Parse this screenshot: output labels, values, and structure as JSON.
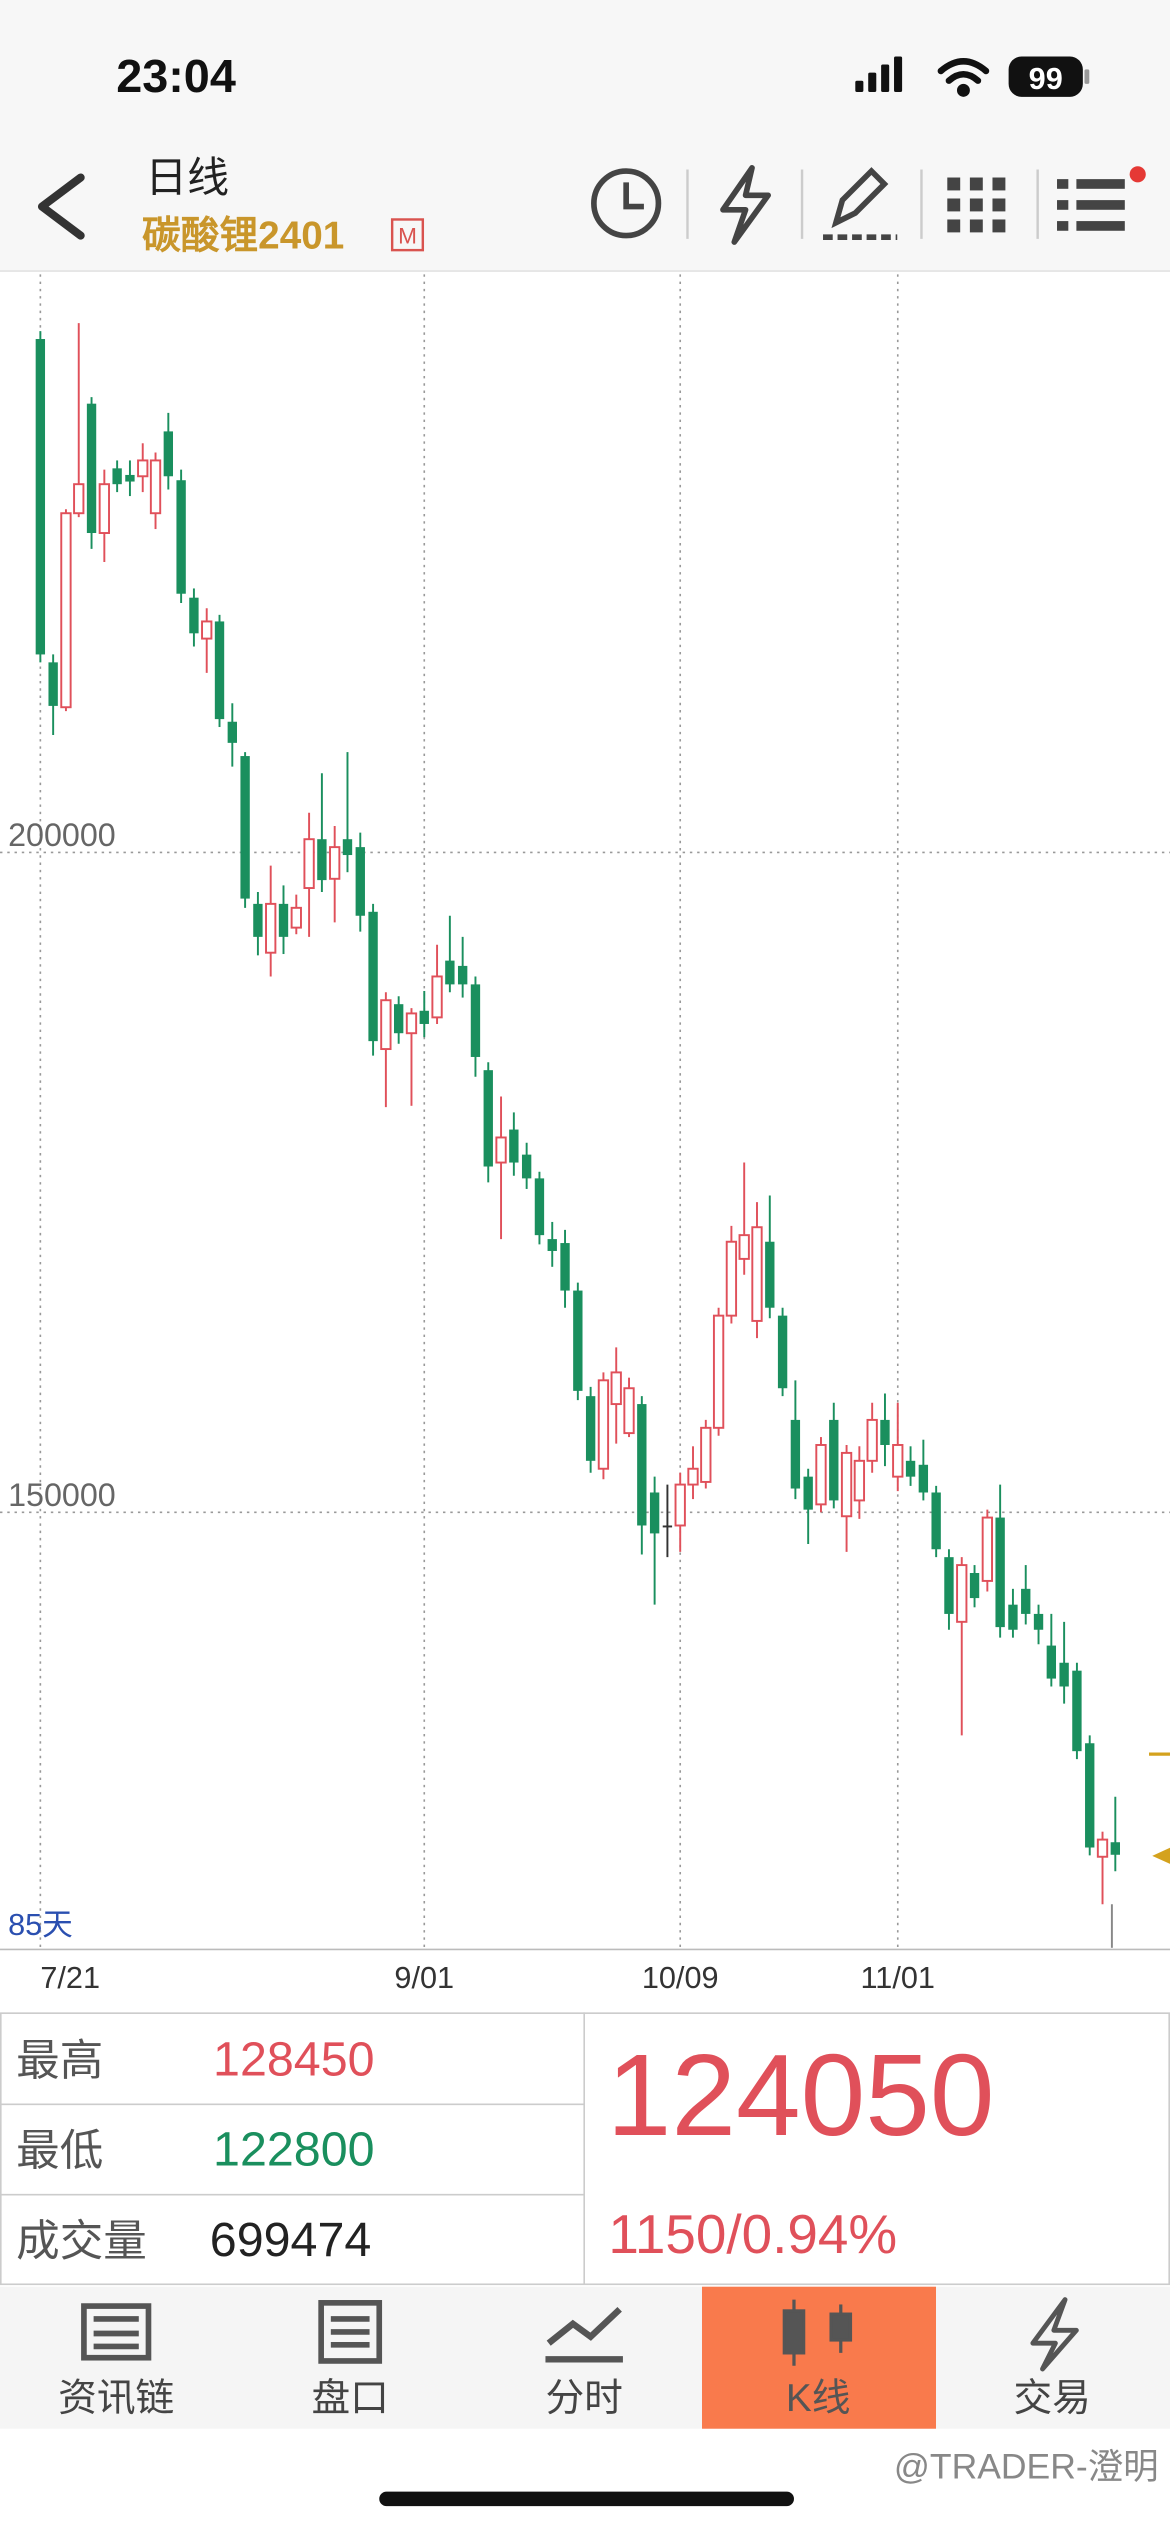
{
  "status_bar": {
    "time": "23:04",
    "battery": "99"
  },
  "header": {
    "title": "日线",
    "symbol": "碳酸锂2401",
    "badge": "M"
  },
  "chart_data": {
    "type": "candlestick",
    "categories": [
      "7/21",
      null,
      null,
      null,
      null,
      null,
      null,
      null,
      null,
      null,
      null,
      null,
      null,
      null,
      null,
      null,
      null,
      null,
      null,
      null,
      null,
      null,
      null,
      null,
      null,
      null,
      null,
      null,
      null,
      null,
      "9/01",
      null,
      null,
      null,
      null,
      null,
      null,
      null,
      null,
      null,
      null,
      null,
      null,
      null,
      null,
      null,
      null,
      null,
      null,
      null,
      "10/09",
      null,
      null,
      null,
      null,
      null,
      null,
      null,
      null,
      null,
      null,
      null,
      null,
      null,
      null,
      null,
      null,
      "11/01",
      null,
      null,
      null,
      null,
      null,
      null,
      null,
      null,
      null,
      null,
      null,
      null,
      null,
      null,
      null,
      null,
      null
    ],
    "open": [
      238900,
      214400,
      211000,
      225700,
      234000,
      224200,
      229100,
      228600,
      228500,
      225700,
      231900,
      228200,
      219300,
      216200,
      217500,
      209900,
      207300,
      196100,
      192400,
      196100,
      194300,
      197300,
      201000,
      198000,
      201000,
      200400,
      195500,
      185100,
      188500,
      186300,
      188000,
      187500,
      191800,
      191400,
      190000,
      183500,
      176500,
      179000,
      177100,
      175300,
      170700,
      170400,
      166800,
      158800,
      153300,
      158200,
      156000,
      158200,
      151500,
      149000,
      149000,
      152100,
      152300,
      156400,
      164900,
      169200,
      164500,
      170500,
      164900,
      157000,
      152700,
      150600,
      157000,
      149700,
      150900,
      153900,
      157000,
      152700,
      153900,
      153600,
      151500,
      146600,
      141700,
      145400,
      144800,
      149600,
      143000,
      144200,
      142300,
      139900,
      138600,
      138000,
      132500,
      123900,
      125000
    ],
    "high": [
      239500,
      215000,
      226000,
      240100,
      234500,
      229000,
      229700,
      229700,
      231000,
      230300,
      233300,
      229000,
      220000,
      218500,
      218000,
      211300,
      207600,
      197000,
      199000,
      197500,
      196800,
      203000,
      206000,
      202000,
      207600,
      201500,
      196100,
      189400,
      189100,
      188200,
      189500,
      193000,
      195200,
      193600,
      190600,
      184100,
      181500,
      180300,
      178000,
      175800,
      172000,
      171400,
      167400,
      159500,
      160600,
      162500,
      160200,
      158800,
      152700,
      152100,
      153000,
      155000,
      157000,
      165500,
      171700,
      176500,
      173500,
      174000,
      165500,
      160000,
      153300,
      155700,
      158300,
      155100,
      155000,
      158300,
      159000,
      158300,
      155000,
      155500,
      152000,
      147200,
      146600,
      146000,
      150200,
      152100,
      144200,
      146000,
      143000,
      142300,
      141700,
      138600,
      133100,
      125800,
      128450
    ],
    "low": [
      214400,
      208900,
      210700,
      225400,
      223000,
      222000,
      227300,
      227000,
      227300,
      224500,
      227500,
      218900,
      215600,
      213600,
      209500,
      206500,
      195800,
      192200,
      190600,
      192300,
      193800,
      193600,
      197000,
      194700,
      198500,
      194000,
      184600,
      180700,
      185500,
      180800,
      186000,
      187000,
      189400,
      189000,
      183000,
      175000,
      170700,
      175500,
      174500,
      170300,
      168600,
      165500,
      158500,
      153000,
      152500,
      155200,
      155700,
      146800,
      143000,
      146600,
      147000,
      151000,
      151800,
      155800,
      164300,
      168000,
      163200,
      164700,
      158800,
      151000,
      147600,
      150000,
      150300,
      147000,
      149500,
      153000,
      153500,
      151600,
      152000,
      150900,
      146600,
      141100,
      133100,
      142800,
      144000,
      140500,
      140500,
      141500,
      140000,
      136800,
      135500,
      131300,
      124000,
      120300,
      122800
    ],
    "close": [
      215000,
      211100,
      225700,
      227900,
      224200,
      227900,
      227900,
      228100,
      229700,
      229700,
      228500,
      219600,
      216600,
      217500,
      210100,
      208300,
      196500,
      193600,
      196100,
      193600,
      195800,
      201000,
      197900,
      200400,
      199800,
      195200,
      185700,
      188800,
      186300,
      187800,
      187000,
      190600,
      190000,
      190000,
      184500,
      176200,
      178400,
      176500,
      175300,
      171000,
      169800,
      166800,
      159200,
      153900,
      160000,
      160600,
      159400,
      149000,
      148400,
      149000,
      152100,
      153300,
      156400,
      164900,
      170500,
      171000,
      171600,
      165500,
      159400,
      151800,
      150200,
      155100,
      150900,
      154500,
      153900,
      157000,
      155100,
      155100,
      152700,
      151500,
      147200,
      142300,
      146000,
      143500,
      149600,
      141300,
      141100,
      142300,
      141100,
      137400,
      136800,
      131900,
      124600,
      125200,
      124050
    ],
    "ylim": [
      117000,
      243800
    ],
    "yticks": [
      150000,
      200000
    ],
    "grid": true,
    "up_color": "#e0505a",
    "down_color": "#1a8f5e",
    "flat_color": "#333333",
    "annotation": "85天"
  },
  "quote": {
    "rows": [
      {
        "label": "最高",
        "value": 128450
      },
      {
        "label": "最低",
        "value": 122800
      },
      {
        "label": "成交量",
        "value": 699474
      }
    ],
    "price": 124050,
    "change": "1150/0.94%"
  },
  "tabs": [
    "资讯链",
    "盘口",
    "分时",
    "K线",
    "交易"
  ],
  "watermark": "@TRADER-澄明"
}
